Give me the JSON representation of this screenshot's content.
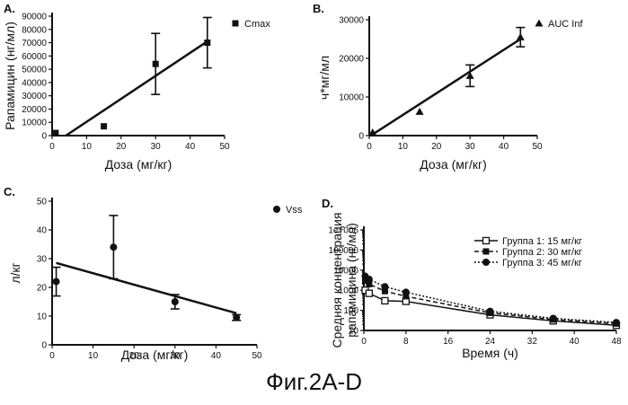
{
  "figure_caption": "Фиг.2A-D",
  "chart_data": [
    {
      "panel": "A.",
      "type": "scatter",
      "series": [
        {
          "name": "Cmax",
          "marker": "square",
          "x": [
            1,
            15,
            30,
            45
          ],
          "y": [
            2000,
            7000,
            54000,
            70000
          ],
          "err": [
            0,
            0,
            23000,
            19000
          ]
        }
      ],
      "fit_line": {
        "x": [
          4,
          45
        ],
        "y": [
          0,
          71000
        ]
      },
      "xlabel": "Доза (мг/кг)",
      "ylabel": "Рапамицин (нг/мл)",
      "xlim": [
        0,
        50
      ],
      "ylim": [
        0,
        90000
      ],
      "xticks": [
        0,
        10,
        20,
        30,
        40,
        50
      ],
      "xtick_labels": [
        "0",
        "10",
        "20",
        "30",
        "40",
        "50"
      ],
      "yticks": [
        0,
        10000,
        20000,
        30000,
        40000,
        50000,
        60000,
        70000,
        80000,
        90000
      ],
      "ytick_labels": [
        "0",
        "10000",
        "20000",
        "30000",
        "40000",
        "50000",
        "60000",
        "70000",
        "80000",
        "90000"
      ],
      "legend": "top-right"
    },
    {
      "panel": "B.",
      "type": "scatter",
      "series": [
        {
          "name": "AUC Inf",
          "marker": "triangle",
          "x": [
            1,
            15,
            30,
            45
          ],
          "y": [
            800,
            6200,
            15500,
            25500
          ],
          "err": [
            0,
            0,
            2800,
            2500
          ]
        }
      ],
      "fit_line": {
        "x": [
          1,
          45
        ],
        "y": [
          300,
          25000
        ]
      },
      "xlabel": "Доза (мг/кг)",
      "ylabel": "ч*мг/мл",
      "xlim": [
        0,
        50
      ],
      "ylim": [
        0,
        30000
      ],
      "xticks": [
        0,
        10,
        20,
        30,
        40,
        50
      ],
      "xtick_labels": [
        "0",
        "10",
        "20",
        "30",
        "40",
        "50"
      ],
      "yticks": [
        0,
        10000,
        20000,
        30000
      ],
      "ytick_labels": [
        "0",
        "10000",
        "20000",
        "30000"
      ],
      "legend": "top-right"
    },
    {
      "panel": "C.",
      "type": "scatter",
      "series": [
        {
          "name": "Vss",
          "marker": "circle",
          "x": [
            1,
            15,
            30,
            45
          ],
          "y": [
            22,
            34,
            15,
            9.5
          ],
          "err": [
            5,
            11,
            2.5,
            1
          ]
        }
      ],
      "fit_line": {
        "x": [
          1,
          45
        ],
        "y": [
          28.5,
          11
        ]
      },
      "xlabel": "Доза (мг/кг)",
      "ylabel": "л/кг",
      "xlim": [
        0,
        50
      ],
      "ylim": [
        0,
        50
      ],
      "xticks": [
        0,
        10,
        20,
        30,
        40,
        50
      ],
      "xtick_labels": [
        "0",
        "10",
        "20",
        "30",
        "40",
        "50"
      ],
      "yticks": [
        0,
        10,
        20,
        30,
        40,
        50
      ],
      "ytick_labels": [
        "0",
        "10",
        "20",
        "30",
        "40",
        "50"
      ],
      "legend": "top-right"
    },
    {
      "panel": "D.",
      "type": "line",
      "yscale": "log",
      "series": [
        {
          "name": "Группа 1: 15 мг/кг",
          "marker": "square-open",
          "dash": "solid",
          "x": [
            0.25,
            1,
            4,
            8,
            24,
            36,
            48
          ],
          "y": [
            1000,
            700,
            300,
            280,
            60,
            30,
            18
          ]
        },
        {
          "name": "Группа 2: 30 мг/кг",
          "marker": "square",
          "dash": "dashed",
          "x": [
            0.25,
            1,
            4,
            8,
            24,
            36,
            48
          ],
          "y": [
            3000,
            2000,
            900,
            500,
            75,
            35,
            22
          ]
        },
        {
          "name": "Группа 3: 45 мг/кг",
          "marker": "circle",
          "dash": "dotted",
          "x": [
            0.25,
            1,
            4,
            8,
            24,
            36,
            48
          ],
          "y": [
            5000,
            3500,
            1500,
            800,
            90,
            40,
            25
          ]
        }
      ],
      "xlabel": "Время (ч)",
      "ylabel_lines": [
        "Средняя концентрация",
        "рапамицина (нг/мл)"
      ],
      "xlim": [
        0,
        48
      ],
      "ylim": [
        10,
        1000000
      ],
      "xticks": [
        0,
        8,
        16,
        24,
        32,
        40,
        48
      ],
      "xtick_labels": [
        "0",
        "8",
        "16",
        "24",
        "32",
        "40",
        "48"
      ],
      "yticks": [
        10,
        100,
        1000,
        10000,
        100000,
        1000000
      ],
      "ytick_labels": [
        "10",
        "100",
        "1000",
        "10000",
        "100000",
        "1e+006"
      ],
      "legend": "top-right"
    }
  ]
}
